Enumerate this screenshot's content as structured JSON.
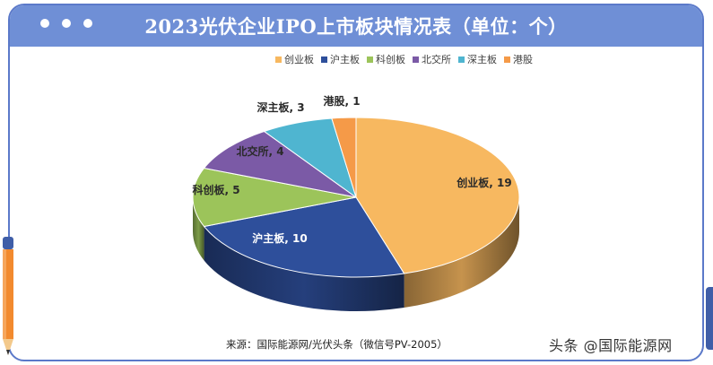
{
  "title": "2023光伏企业IPO上市板块情况表（单位：个）",
  "legend": [
    {
      "label": "创业板",
      "color": "#f7b860"
    },
    {
      "label": "沪主板",
      "color": "#2e4f9b"
    },
    {
      "label": "科创板",
      "color": "#9cc45a"
    },
    {
      "label": "北交所",
      "color": "#7b5aa6"
    },
    {
      "label": "深主板",
      "color": "#4fb5d0"
    },
    {
      "label": "港股",
      "color": "#f59a48"
    }
  ],
  "chart_data": {
    "type": "pie",
    "categories": [
      "创业板",
      "沪主板",
      "科创板",
      "北交所",
      "深主板",
      "港股"
    ],
    "values": [
      19,
      10,
      5,
      4,
      3,
      1
    ],
    "data_labels": [
      "创业板, 19",
      "沪主板, 10",
      "科创板, 5",
      "北交所, 4",
      "深主板, 3",
      "港股, 1"
    ],
    "colors": [
      "#f7b860",
      "#2e4f9b",
      "#9cc45a",
      "#7b5aa6",
      "#4fb5d0",
      "#f59a48"
    ],
    "legend_position": "top-right",
    "title": "2023光伏企业IPO上市板块情况表（单位：个）"
  },
  "source": "来源：国际能源网/光伏头条（微信号PV-2005）",
  "watermark": "头条 @国际能源网"
}
